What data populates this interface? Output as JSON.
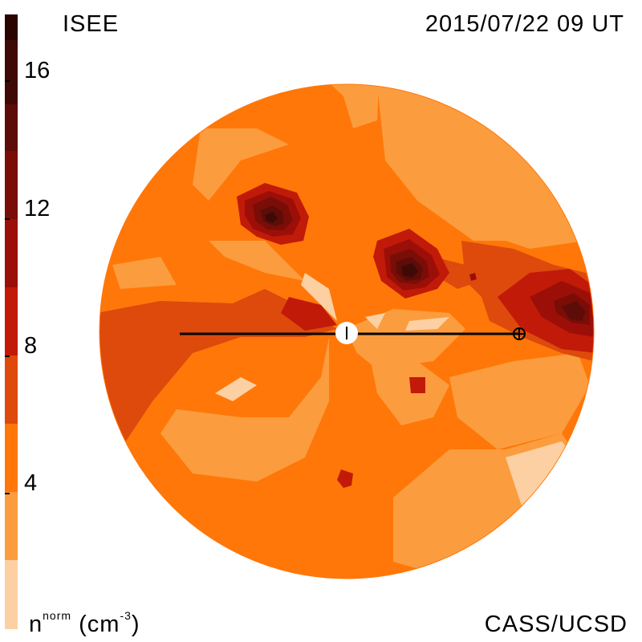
{
  "header": {
    "source_label": "ISEE",
    "timestamp": "2015/07/22 09 UT"
  },
  "footer": {
    "credit": "CASS/UCSD",
    "unit_symbol": "n",
    "unit_super": "norm",
    "unit_paren": "(cm",
    "unit_exp": "-3",
    "unit_close": ")"
  },
  "colorbar": {
    "ticks": [
      "16",
      "12",
      "8",
      "4"
    ],
    "colors": [
      "#2a0500",
      "#3f0a06",
      "#5e0c08",
      "#7b0d07",
      "#9c0f08",
      "#c11a09",
      "#dd4a0c",
      "#ff7709",
      "#fb9d3e",
      "#fdd0a3"
    ]
  },
  "map": {
    "observer_marker": "sun",
    "earth_marker": "earth"
  }
}
